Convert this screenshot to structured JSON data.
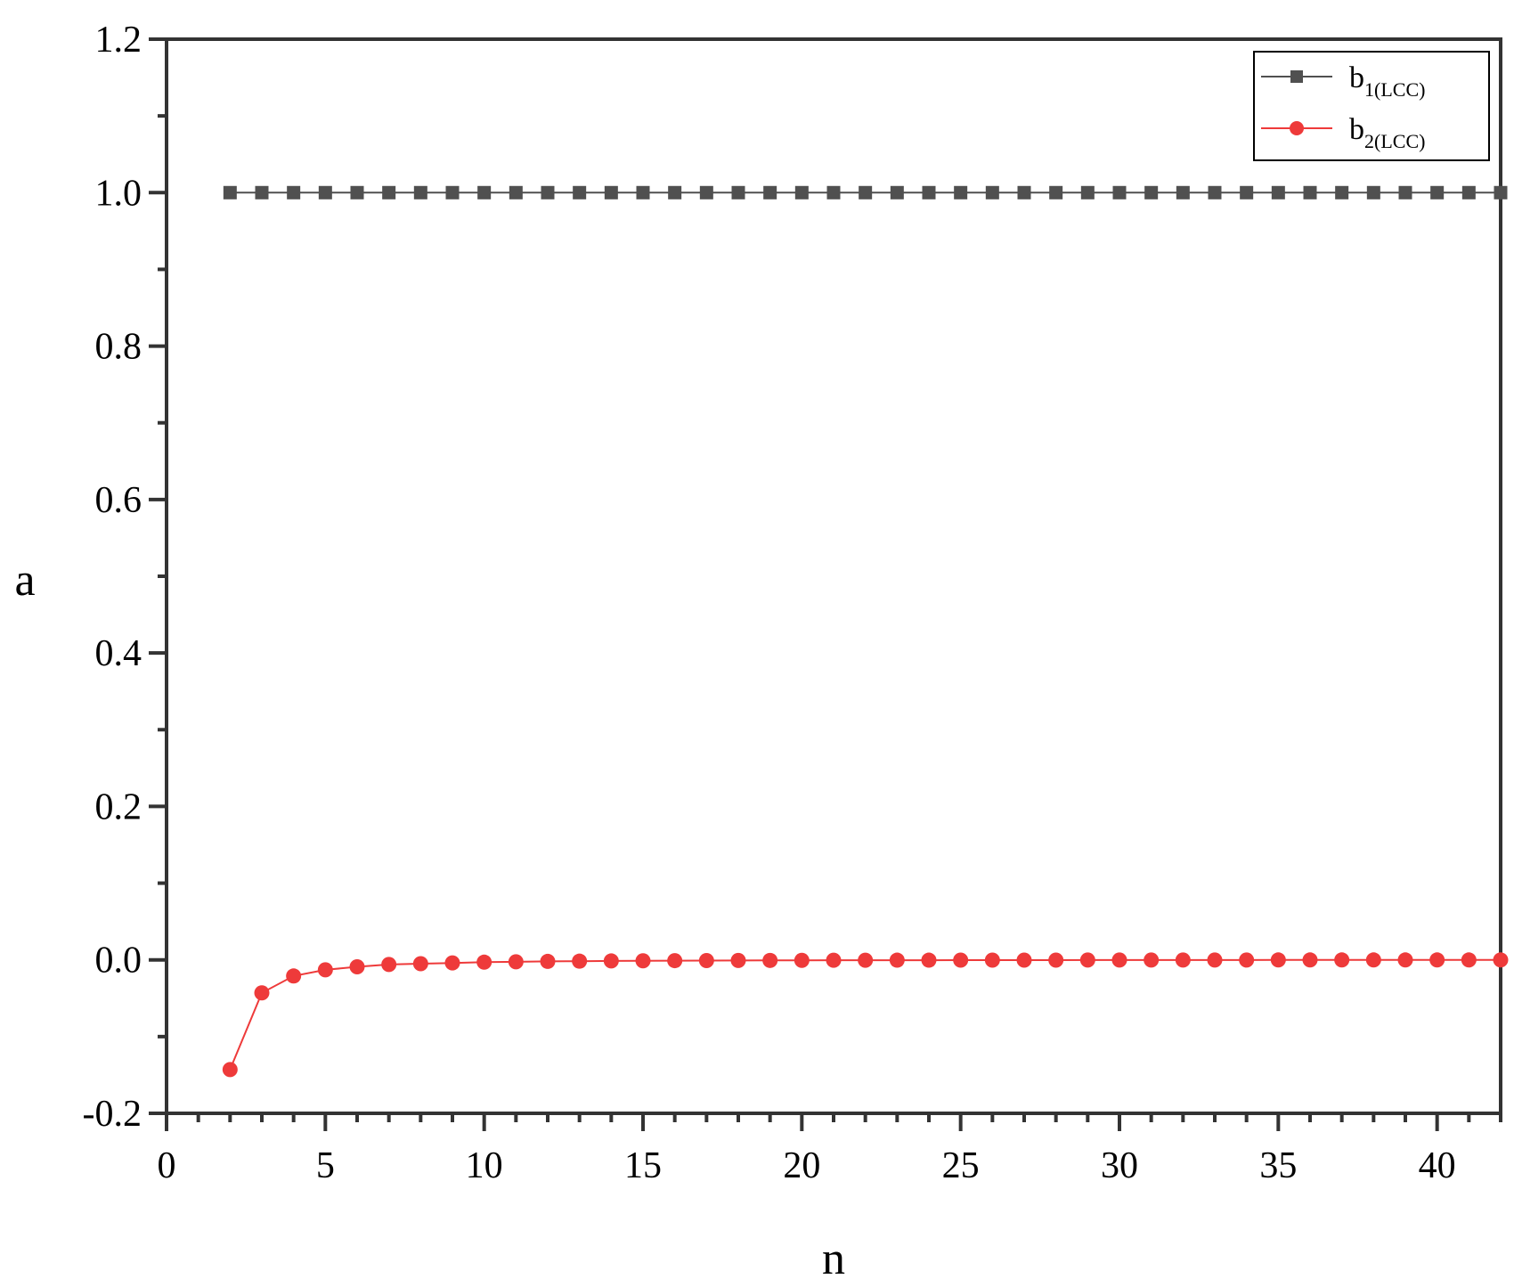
{
  "chart_data": {
    "type": "line",
    "xlabel": "n",
    "ylabel": "a",
    "xlim": [
      0,
      42
    ],
    "ylim": [
      -0.2,
      1.2
    ],
    "xticks": [
      0,
      5,
      10,
      15,
      20,
      25,
      30,
      35,
      40
    ],
    "xtick_labels": [
      "0",
      "5",
      "10",
      "15",
      "20",
      "25",
      "30",
      "35",
      "40"
    ],
    "yticks": [
      -0.2,
      0.0,
      0.2,
      0.4,
      0.6,
      0.8,
      1.0,
      1.2
    ],
    "ytick_labels": [
      "-0.2",
      "0.0",
      "0.2",
      "0.4",
      "0.6",
      "0.8",
      "1.0",
      "1.2"
    ],
    "grid": false,
    "legend_position": "top-right",
    "x": [
      2,
      3,
      4,
      5,
      6,
      7,
      8,
      9,
      10,
      11,
      12,
      13,
      14,
      15,
      16,
      17,
      18,
      19,
      20,
      21,
      22,
      23,
      24,
      25,
      26,
      27,
      28,
      29,
      30,
      31,
      32,
      33,
      34,
      35,
      36,
      37,
      38,
      39,
      40,
      41,
      42
    ],
    "series": [
      {
        "name_main": "b",
        "name_sub": "1(LCC)",
        "color": "#505050",
        "marker": "square",
        "values": [
          1,
          1,
          1,
          1,
          1,
          1,
          1,
          1,
          1,
          1,
          1,
          1,
          1,
          1,
          1,
          1,
          1,
          1,
          1,
          1,
          1,
          1,
          1,
          1,
          1,
          1,
          1,
          1,
          1,
          1,
          1,
          1,
          1,
          1,
          1,
          1,
          1,
          1,
          1,
          1,
          1
        ]
      },
      {
        "name_main": "b",
        "name_sub": "2(LCC)",
        "color": "#ee3a3a",
        "marker": "circle",
        "values": [
          -0.143,
          -0.043,
          -0.021,
          -0.013,
          -0.009,
          -0.006,
          -0.005,
          -0.004,
          -0.003,
          -0.0025,
          -0.002,
          -0.0017,
          -0.0014,
          -0.0012,
          -0.001,
          -0.0009,
          -0.0008,
          -0.0007,
          -0.0006,
          -0.0005,
          -0.0005,
          -0.0004,
          -0.0004,
          -0.0003,
          -0.0003,
          -0.0003,
          -0.0003,
          -0.0002,
          -0.0002,
          -0.0002,
          -0.0002,
          -0.0002,
          -0.0002,
          -0.0001,
          -0.0001,
          -0.0001,
          -0.0001,
          -0.0001,
          -0.0001,
          -0.0001,
          -0.0001
        ]
      }
    ]
  }
}
